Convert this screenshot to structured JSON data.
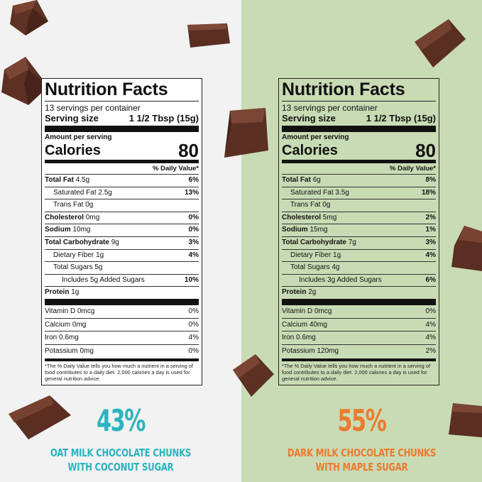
{
  "colors": {
    "left_bg": "#f2f2f2",
    "right_bg": "#c9dbb4",
    "left_accent": "#2bb3c0",
    "right_accent": "#ec7a2f",
    "chocolate": "#5a2f22"
  },
  "left": {
    "title": "Nutrition Facts",
    "servings": "13 servings per container",
    "serving_size_label": "Serving size",
    "serving_size_value": "1 1/2 Tbsp (15g)",
    "amount_per_serving": "Amount per serving",
    "calories_label": "Calories",
    "calories_value": "80",
    "dv_header": "% Daily Value*",
    "total_fat_label": "Total Fat",
    "total_fat_amt": "4.5g",
    "total_fat_pct": "6%",
    "sat_fat_label": "Saturated Fat 2.5g",
    "sat_fat_pct": "13%",
    "trans_fat_label": "Trans Fat 0g",
    "cholesterol_label": "Cholesterol",
    "cholesterol_amt": "0mg",
    "cholesterol_pct": "0%",
    "sodium_label": "Sodium",
    "sodium_amt": "10mg",
    "sodium_pct": "0%",
    "carb_label": "Total Carbohydrate",
    "carb_amt": "9g",
    "carb_pct": "3%",
    "fiber_label": "Dietary Fiber 1g",
    "fiber_pct": "4%",
    "sugars_label": "Total Sugars 5g",
    "added_sugars_label": "Includes 5g Added Sugars",
    "added_sugars_pct": "10%",
    "protein_label": "Protein",
    "protein_amt": "1g",
    "vitd_label": "Vitamin D 0mcg",
    "vitd_pct": "0%",
    "calcium_label": "Calcium 0mg",
    "calcium_pct": "0%",
    "iron_label": "Iron 0.6mg",
    "iron_pct": "4%",
    "potassium_label": "Potassium 0mg",
    "potassium_pct": "0%",
    "footnote": "*The % Daily Value tells you how much a nutrient in a serving of food contributes to a daily diet. 2,000 calories a day is used for general nutrition advice.",
    "big_percent": "43%",
    "tag_line1": "OAT MILK CHOCOLATE CHUNKS",
    "tag_line2": "WITH COCONUT SUGAR"
  },
  "right": {
    "title": "Nutrition Facts",
    "servings": "13 servings per container",
    "serving_size_label": "Serving size",
    "serving_size_value": "1 1/2 Tbsp (15g)",
    "amount_per_serving": "Amount per serving",
    "calories_label": "Calories",
    "calories_value": "80",
    "dv_header": "% Daily Value*",
    "total_fat_label": "Total Fat",
    "total_fat_amt": "6g",
    "total_fat_pct": "8%",
    "sat_fat_label": "Saturated Fat 3.5g",
    "sat_fat_pct": "18%",
    "trans_fat_label": "Trans Fat 0g",
    "cholesterol_label": "Cholesterol",
    "cholesterol_amt": "5mg",
    "cholesterol_pct": "2%",
    "sodium_label": "Sodium",
    "sodium_amt": "15mg",
    "sodium_pct": "1%",
    "carb_label": "Total Carbohydrate",
    "carb_amt": "7g",
    "carb_pct": "3%",
    "fiber_label": "Dietary Fiber 1g",
    "fiber_pct": "4%",
    "sugars_label": "Total Sugars 4g",
    "added_sugars_label": "Includes 3g Added Sugars",
    "added_sugars_pct": "6%",
    "protein_label": "Protein",
    "protein_amt": "2g",
    "vitd_label": "Vitamin D 0mcg",
    "vitd_pct": "0%",
    "calcium_label": "Calcium 40mg",
    "calcium_pct": "4%",
    "iron_label": "Iron 0.6mg",
    "iron_pct": "4%",
    "potassium_label": "Potassium 120mg",
    "potassium_pct": "2%",
    "footnote": "*The % Daily Value tells you how much a nutrient in a serving of food contributes to a daily diet. 2,000 calories a day is used for general nutrition advice.",
    "big_percent": "55%",
    "tag_line1": "DARK MILK CHOCOLATE CHUNKS",
    "tag_line2": "WITH MAPLE SUGAR"
  }
}
